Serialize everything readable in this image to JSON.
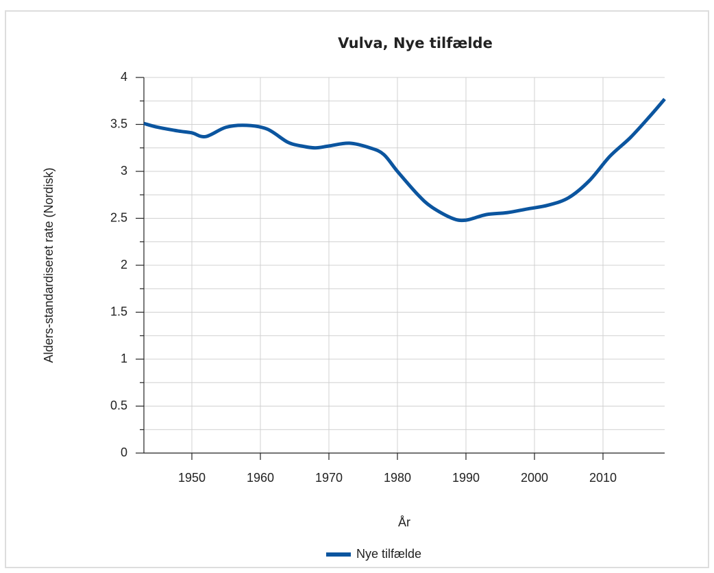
{
  "chart_data": {
    "type": "line",
    "title": "Vulva, Nye tilfælde",
    "x_label": "År",
    "y_label": "Alders-standardiseret rate (Nordisk)",
    "x": [
      1943,
      1945,
      1948,
      1950,
      1952,
      1955,
      1958,
      1961,
      1964,
      1966,
      1968,
      1970,
      1973,
      1976,
      1978,
      1980,
      1983,
      1985,
      1988,
      1990,
      1993,
      1996,
      1999,
      2002,
      2005,
      2008,
      2011,
      2014,
      2017,
      2019
    ],
    "series": [
      {
        "name": "Nye tilfælde",
        "color": "#0b559f",
        "values": [
          3.51,
          3.47,
          3.43,
          3.41,
          3.37,
          3.47,
          3.49,
          3.45,
          3.31,
          3.27,
          3.25,
          3.27,
          3.3,
          3.25,
          3.18,
          3.0,
          2.75,
          2.62,
          2.5,
          2.48,
          2.54,
          2.56,
          2.6,
          2.64,
          2.72,
          2.9,
          3.16,
          3.36,
          3.6,
          3.77
        ]
      }
    ],
    "xlim": [
      1943,
      2019
    ],
    "xticks": [
      1950,
      1960,
      1970,
      1980,
      1990,
      2000,
      2010
    ],
    "ylim": [
      0,
      4
    ],
    "yticks": [
      0,
      0.5,
      1,
      1.5,
      2,
      2.5,
      3,
      3.5,
      4
    ],
    "y_minor_ticks": [
      0.25,
      0.75,
      1.25,
      1.75,
      2.25,
      2.75,
      3.25,
      3.75
    ],
    "grid": true,
    "legend": "bottom"
  }
}
